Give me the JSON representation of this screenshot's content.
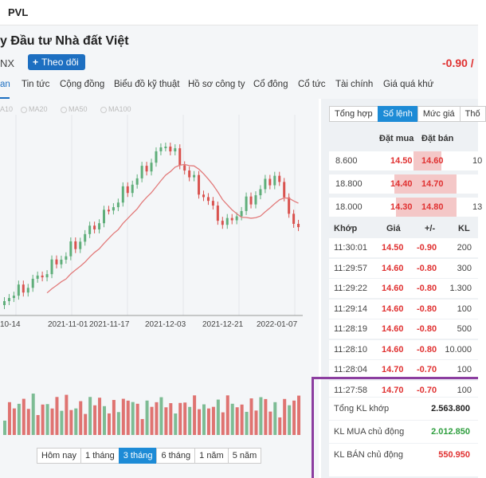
{
  "topbar": {
    "ticker": "PVL"
  },
  "header": {
    "company": "y Đầu tư Nhà đất Việt",
    "exchange": "NX",
    "follow_label": "Theo dõi",
    "change": "-0.90 /",
    "change_color": "#e03131"
  },
  "tabs": [
    {
      "label": "an",
      "active": true
    },
    {
      "label": "Tin tức"
    },
    {
      "label": "Cộng đồng"
    },
    {
      "label": "Biểu đồ kỹ thuật"
    },
    {
      "label": "Hồ sơ công ty"
    },
    {
      "label": "Cổ đông"
    },
    {
      "label": "Cổ tức"
    },
    {
      "label": "Tài chính"
    },
    {
      "label": "Giá quá khứ"
    }
  ],
  "ma_legend": [
    "A10",
    "MA20",
    "MA50",
    "MA100"
  ],
  "chart_data": {
    "type": "candlestick",
    "x_tick_labels": [
      "10-14",
      "2021-11-01",
      "2021-11-17",
      "2021-12-03",
      "2021-12-21",
      "2022-01-07"
    ],
    "up_color": "#5fae7a",
    "down_color": "#d9534f",
    "ma_color": "#e27b7b"
  },
  "period_buttons": [
    {
      "label": "Hôm nay"
    },
    {
      "label": "1 tháng"
    },
    {
      "label": "3 tháng",
      "active": true
    },
    {
      "label": "6 tháng"
    },
    {
      "label": "1 năm"
    },
    {
      "label": "5 năm"
    }
  ],
  "side_tabs": [
    {
      "label": "Tổng hợp"
    },
    {
      "label": "Sổ lệnh",
      "active": true
    },
    {
      "label": "Mức giá"
    },
    {
      "label": "Thố"
    }
  ],
  "orderbook": {
    "bid_header": "Đặt mua",
    "ask_header": "Đặt bán",
    "rows": [
      {
        "bid_vol": "8.600",
        "bid": "14.50",
        "ask": "14.60",
        "ask_vol": "10",
        "bid_fill": 0.15,
        "ask_fill": 0.6
      },
      {
        "bid_vol": "18.800",
        "bid": "14.40",
        "ask": "14.70",
        "ask_vol": "",
        "bid_fill": 0.75,
        "ask_fill": 1.0
      },
      {
        "bid_vol": "18.000",
        "bid": "14.30",
        "ask": "14.80",
        "ask_vol": "13",
        "bid_fill": 0.7,
        "ask_fill": 1.0
      }
    ]
  },
  "matches": {
    "headers": {
      "time": "Khớp",
      "price": "Giá",
      "change": "+/-",
      "vol": "KL"
    },
    "rows": [
      {
        "time": "11:30:01",
        "price": "14.50",
        "change": "-0.90",
        "vol": "200"
      },
      {
        "time": "11:29:57",
        "price": "14.60",
        "change": "-0.80",
        "vol": "300"
      },
      {
        "time": "11:29:22",
        "price": "14.60",
        "change": "-0.80",
        "vol": "1.300"
      },
      {
        "time": "11:29:14",
        "price": "14.60",
        "change": "-0.80",
        "vol": "100"
      },
      {
        "time": "11:28:19",
        "price": "14.60",
        "change": "-0.80",
        "vol": "500"
      },
      {
        "time": "11:28:10",
        "price": "14.60",
        "change": "-0.80",
        "vol": "10.000"
      },
      {
        "time": "11:28:04",
        "price": "14.70",
        "change": "-0.70",
        "vol": "100"
      },
      {
        "time": "11:27:58",
        "price": "14.70",
        "change": "-0.70",
        "vol": "100"
      }
    ]
  },
  "summary": {
    "total_label": "Tổng KL khớp",
    "total_value": "2.563.800",
    "buy_label": "KL MUA chủ động",
    "buy_value": "2.012.850",
    "buy_color": "#2e9e3e",
    "sell_label": "KL BÁN chủ động",
    "sell_value": "550.950",
    "sell_color": "#e03131"
  },
  "highlight_color": "#8c3ea0"
}
